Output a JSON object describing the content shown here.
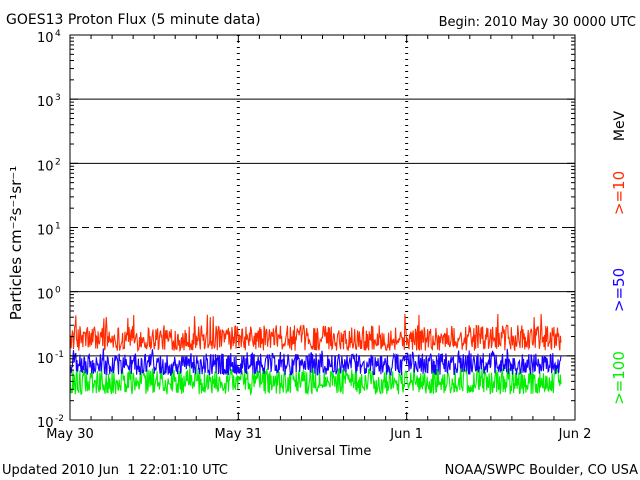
{
  "chart_data": {
    "type": "line",
    "title": "GOES13 Proton Flux (5 minute data)",
    "begin_label": "Begin: 2010 May 30 0000 UTC",
    "xlabel": "Universal Time",
    "ylabel": "Particles cm⁻²s⁻¹sr⁻¹",
    "y_scale": "log",
    "ylim": [
      0.01,
      10000
    ],
    "y_ticks": [
      {
        "base": "10",
        "exp": "-2",
        "value": 0.01
      },
      {
        "base": "10",
        "exp": "-1",
        "value": 0.1
      },
      {
        "base": "10",
        "exp": "0",
        "value": 1
      },
      {
        "base": "10",
        "exp": "1",
        "value": 10
      },
      {
        "base": "10",
        "exp": "2",
        "value": 100
      },
      {
        "base": "10",
        "exp": "3",
        "value": 1000
      },
      {
        "base": "10",
        "exp": "4",
        "value": 10000
      }
    ],
    "x_range": [
      "2010-05-30T00:00",
      "2010-06-02T00:00"
    ],
    "x_ticks": [
      {
        "label": "May 30",
        "day": 0
      },
      {
        "label": "May 31",
        "day": 1
      },
      {
        "label": "Jun 1",
        "day": 2
      },
      {
        "label": "Jun 2",
        "day": 3
      }
    ],
    "threshold_lines": [
      {
        "value": 0.1,
        "style": "solid"
      },
      {
        "value": 1,
        "style": "solid"
      },
      {
        "value": 10,
        "style": "dashed"
      },
      {
        "value": 100,
        "style": "solid"
      },
      {
        "value": 1000,
        "style": "solid"
      }
    ],
    "legend_unit": "MeV",
    "series": [
      {
        "name": ">=10",
        "color": "#ff2a00",
        "interval_minutes": 5,
        "start": "2010-05-30T00:00",
        "end": "2010-06-01T22:00",
        "typical_range": [
          0.12,
          0.3
        ],
        "max": 0.45
      },
      {
        "name": ">=50",
        "color": "#1a00ff",
        "interval_minutes": 5,
        "start": "2010-05-30T00:00",
        "end": "2010-06-01T22:00",
        "typical_range": [
          0.05,
          0.11
        ],
        "max": 0.13
      },
      {
        "name": ">=100",
        "color": "#00ee00",
        "interval_minutes": 5,
        "start": "2010-05-30T00:00",
        "end": "2010-06-01T22:00",
        "typical_range": [
          0.025,
          0.065
        ],
        "max": 0.075
      }
    ]
  },
  "footer": {
    "updated": "Updated 2010 Jun  1 22:01:10 UTC",
    "credit": "NOAA/SWPC Boulder, CO USA"
  }
}
